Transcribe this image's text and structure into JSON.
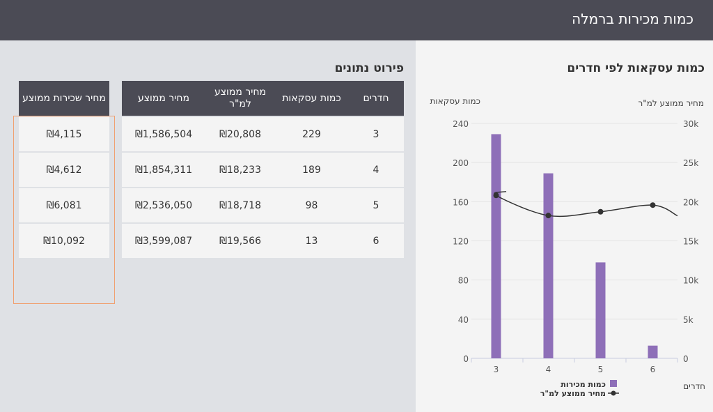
{
  "header": {
    "title": "כמות מכירות ברמלה"
  },
  "details": {
    "title": "פירוט נתונים",
    "columns": [
      "חדרים",
      "כמות עסקאות",
      "מחיר ממוצע למ\"ר",
      "מחיר ממוצע"
    ],
    "rows": [
      [
        "3",
        "229",
        "₪20,808",
        "₪1,586,504"
      ],
      [
        "4",
        "189",
        "₪18,233",
        "₪1,854,311"
      ],
      [
        "5",
        "98",
        "₪18,718",
        "₪2,536,050"
      ],
      [
        "6",
        "13",
        "₪19,566",
        "₪3,599,087"
      ]
    ],
    "rent": {
      "column": "מחיר שכירות ממוצע",
      "values": [
        "₪4,115",
        "₪4,612",
        "₪6,081",
        "₪10,092"
      ]
    }
  },
  "chart_data": {
    "type": "bar+line",
    "title": "כמות עסקאות לפי חדרים",
    "xlabel": "חדרים",
    "ylabel_left": "כמות עסקאות",
    "ylabel_right": "מחיר ממוצע למ\"ר",
    "categories": [
      "3",
      "4",
      "5",
      "6"
    ],
    "ylim_left": [
      0,
      240
    ],
    "yticks_left": [
      "0",
      "40",
      "80",
      "120",
      "160",
      "200",
      "240"
    ],
    "ylim_right": [
      0,
      30000
    ],
    "yticks_right": [
      "0",
      "5k",
      "10k",
      "15k",
      "20k",
      "25k",
      "30k"
    ],
    "grid": true,
    "legend": "bottom",
    "series": [
      {
        "name": "כמות מכירות",
        "type": "bar",
        "axis": "left",
        "color": "#8e6fb8",
        "values": [
          229,
          189,
          98,
          13
        ]
      },
      {
        "name": "מחיר ממוצע למ\"ר",
        "type": "line",
        "axis": "right",
        "color": "#333333",
        "values": [
          20808,
          18233,
          18718,
          19566
        ]
      }
    ]
  }
}
